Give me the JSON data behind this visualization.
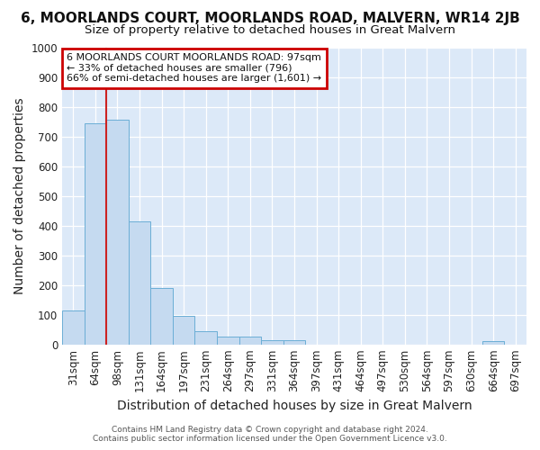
{
  "title": "6, MOORLANDS COURT, MOORLANDS ROAD, MALVERN, WR14 2JB",
  "subtitle": "Size of property relative to detached houses in Great Malvern",
  "xlabel": "Distribution of detached houses by size in Great Malvern",
  "ylabel": "Number of detached properties",
  "categories": [
    "31sqm",
    "64sqm",
    "98sqm",
    "131sqm",
    "164sqm",
    "197sqm",
    "231sqm",
    "264sqm",
    "297sqm",
    "331sqm",
    "364sqm",
    "397sqm",
    "431sqm",
    "464sqm",
    "497sqm",
    "530sqm",
    "564sqm",
    "597sqm",
    "630sqm",
    "664sqm",
    "697sqm"
  ],
  "values": [
    115,
    745,
    755,
    415,
    190,
    95,
    45,
    25,
    25,
    15,
    15,
    0,
    0,
    0,
    0,
    0,
    0,
    0,
    0,
    10,
    0
  ],
  "bar_color": "#c5daf0",
  "bar_edge_color": "#6baed6",
  "plot_background_color": "#dce9f8",
  "figure_background_color": "#ffffff",
  "grid_color": "#ffffff",
  "vline_x_index": 2,
  "vline_color": "#cc2222",
  "ylim": [
    0,
    1000
  ],
  "annotation_text": "6 MOORLANDS COURT MOORLANDS ROAD: 97sqm\n← 33% of detached houses are smaller (796)\n66% of semi-detached houses are larger (1,601) →",
  "annotation_box_color": "#ffffff",
  "annotation_border_color": "#cc0000",
  "title_fontsize": 11,
  "subtitle_fontsize": 9.5,
  "tick_fontsize": 8.5,
  "label_fontsize": 10,
  "footer_text": "Contains HM Land Registry data © Crown copyright and database right 2024.\nContains public sector information licensed under the Open Government Licence v3.0."
}
